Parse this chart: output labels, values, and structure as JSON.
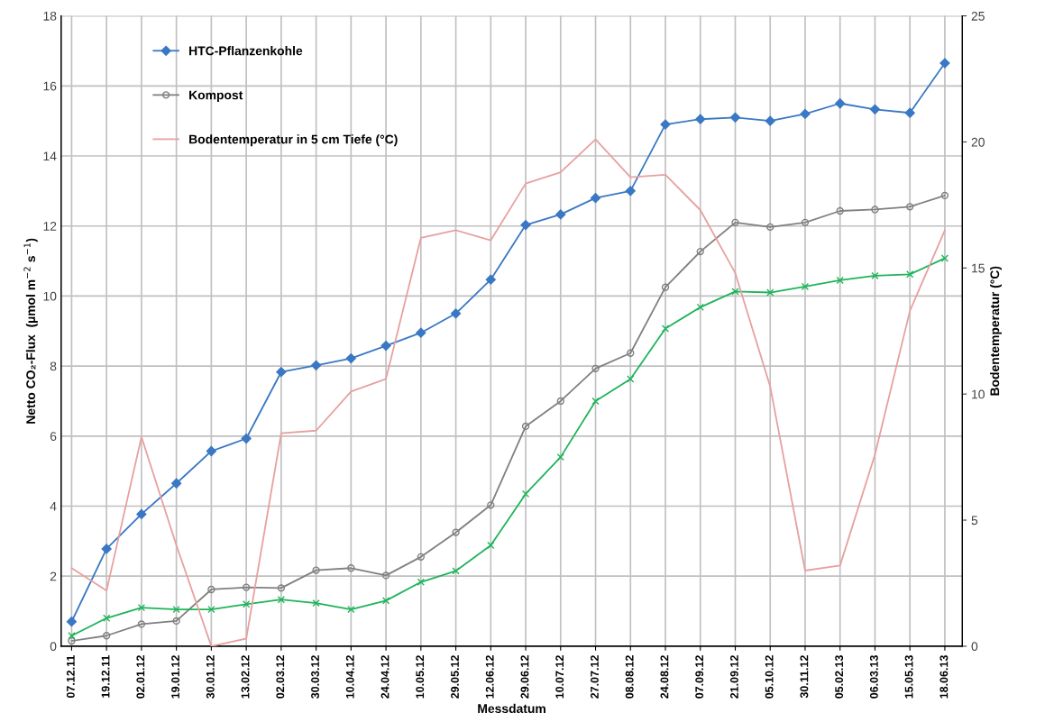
{
  "chart_data": {
    "type": "line",
    "xlabel": "Messdatum",
    "ylabel": "Netto CO₂-Flux  (µmol m$^{−2}$ s$^{−1}$)",
    "y2label": "Bodentemperatur (°C)",
    "categories": [
      "07.12.11",
      "19.12.11",
      "02.01.12",
      "19.01.12",
      "30.01.12",
      "13.02.12",
      "02.03.12",
      "30.03.12",
      "10.04.12",
      "24.04.12",
      "10.05.12",
      "29.05.12",
      "12.06.12",
      "29.06.12",
      "10.07.12",
      "27.07.12",
      "08.08.12",
      "24.08.12",
      "07.09.12",
      "21.09.12",
      "05.10.12",
      "30.11.12",
      "05.02.13",
      "06.03.13",
      "15.05.13",
      "18.06.13"
    ],
    "series": [
      {
        "name": "HTC-Pflanzenkohle",
        "color": "#3a78c4",
        "marker": "diamond",
        "values": [
          0.7,
          2.78,
          3.77,
          4.65,
          5.57,
          5.93,
          7.83,
          8.02,
          8.22,
          8.58,
          8.95,
          9.5,
          10.47,
          12.03,
          12.33,
          12.8,
          13.0,
          14.9,
          15.05,
          15.1,
          15.0,
          15.2,
          15.5,
          15.33,
          15.23,
          16.65
        ]
      },
      {
        "name": "Kompost",
        "color": "#808080",
        "marker": "circle",
        "values": [
          0.15,
          0.3,
          0.63,
          0.72,
          1.62,
          1.68,
          1.66,
          2.17,
          2.23,
          2.02,
          2.55,
          3.25,
          4.03,
          6.28,
          7.0,
          7.93,
          8.37,
          10.25,
          11.27,
          12.1,
          11.97,
          12.1,
          12.43,
          12.47,
          12.55,
          12.87
        ]
      },
      {
        "color": "#1fb45a",
        "marker": "cross",
        "values": [
          0.3,
          0.8,
          1.1,
          1.05,
          1.05,
          1.2,
          1.33,
          1.23,
          1.05,
          1.3,
          1.83,
          2.15,
          2.88,
          4.35,
          5.4,
          7.0,
          7.63,
          9.07,
          9.68,
          10.13,
          10.1,
          10.27,
          10.45,
          10.58,
          10.62,
          11.08
        ]
      },
      {
        "name": "Bodentemperatur in 5 cm Tiefe (°C)",
        "color": "#e8a0a0",
        "marker": "none",
        "axis": "y2",
        "values": [
          3.1,
          2.2,
          8.3,
          4.0,
          0,
          0.3,
          8.45,
          8.55,
          10.1,
          10.6,
          16.2,
          16.5,
          16.1,
          18.35,
          18.8,
          20.1,
          18.6,
          18.7,
          17.3,
          14.8,
          10.3,
          3.0,
          3.2,
          7.6,
          13.3,
          16.5
        ]
      }
    ],
    "ylim": [
      0,
      18
    ],
    "yticks": [
      0,
      2,
      4,
      6,
      8,
      10,
      12,
      14,
      16,
      18
    ],
    "y2lim": [
      0,
      25
    ],
    "y2ticks": [
      0,
      5,
      10,
      15,
      20,
      25
    ],
    "grid": true,
    "legend": "top left"
  }
}
